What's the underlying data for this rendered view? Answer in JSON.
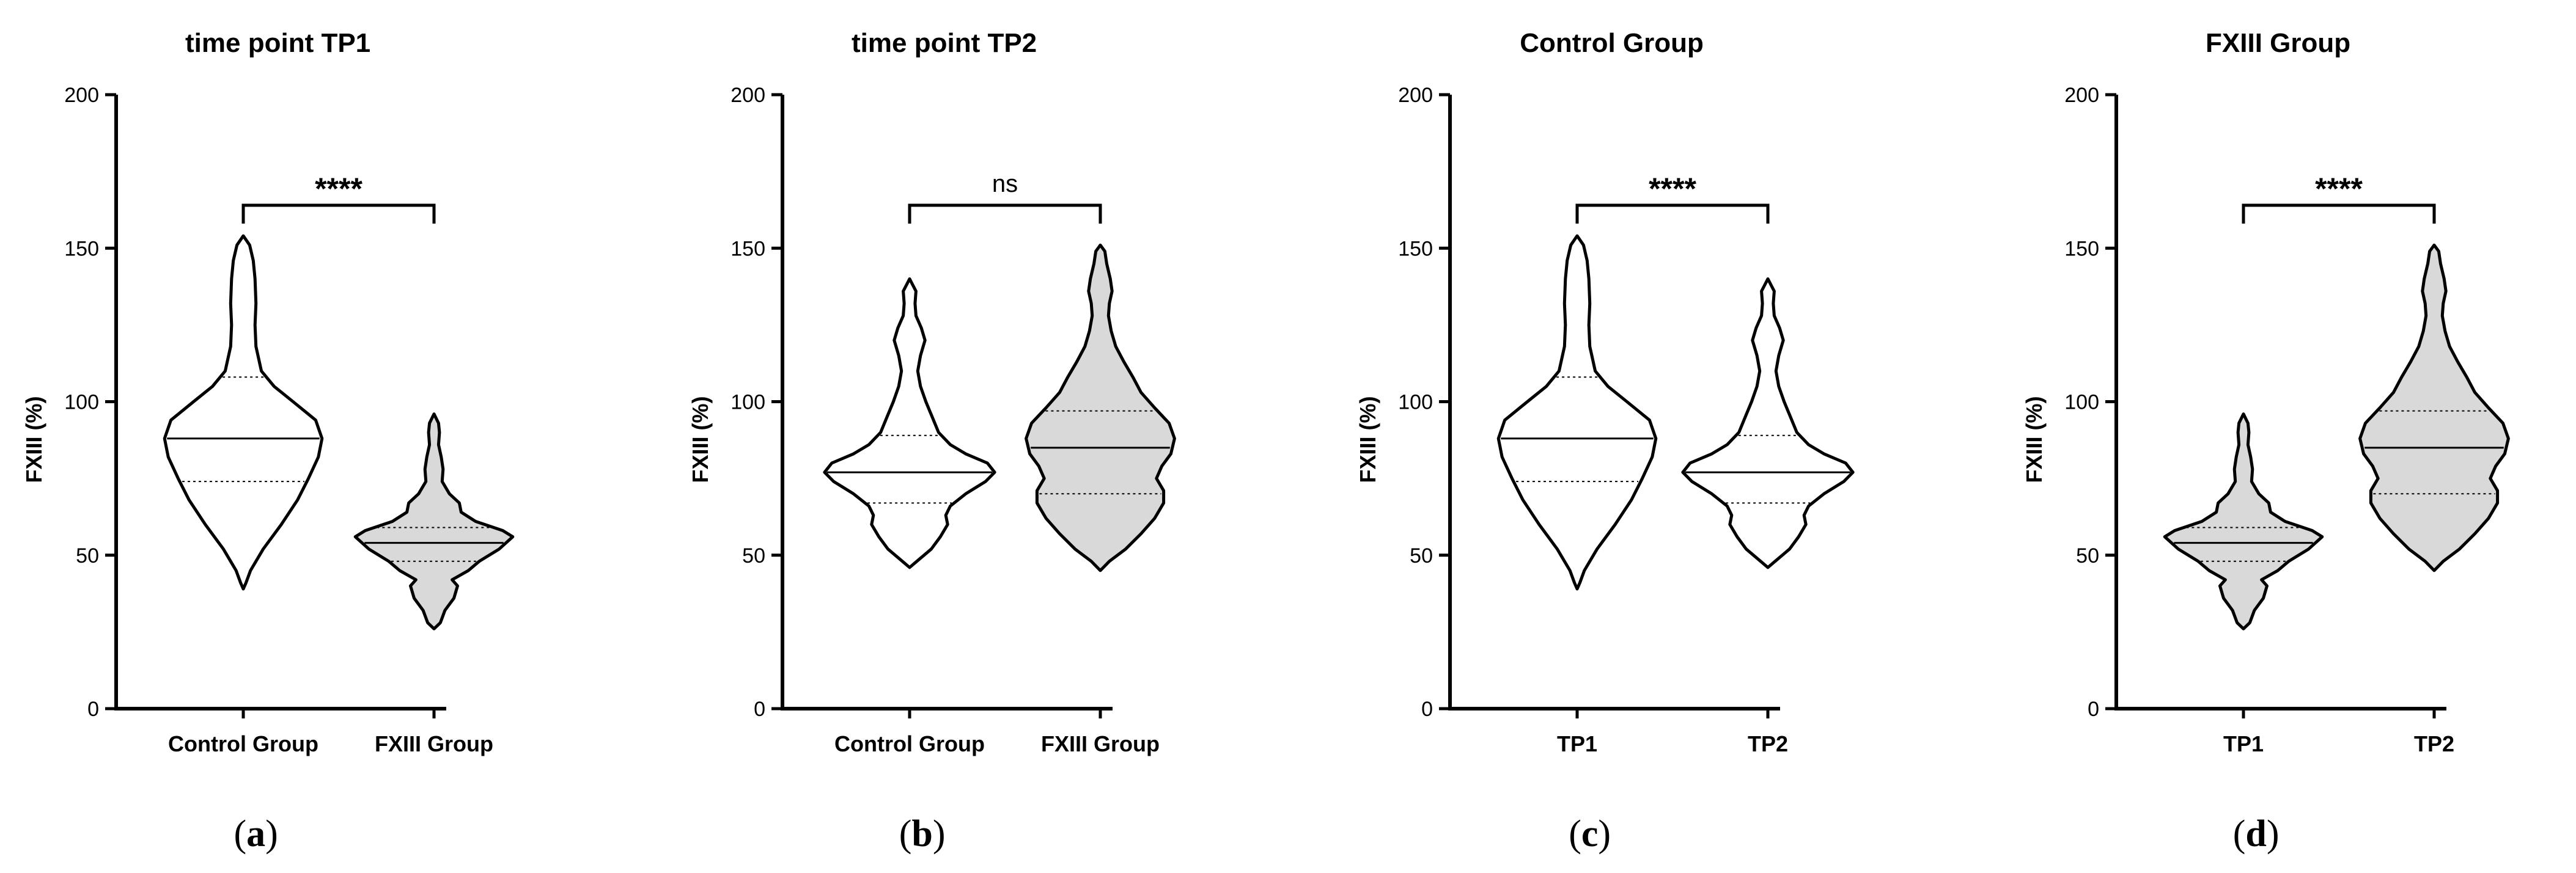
{
  "colors": {
    "outline": "#000000",
    "grey_fill": "#d9d9d9",
    "white_fill": "#ffffff"
  },
  "chart_data": [
    {
      "type": "violin",
      "panel_label": "a",
      "title": "time point TP1",
      "ylabel": "FXIII (%)",
      "xlabel": "",
      "ylim": [
        0,
        200
      ],
      "yticks": [
        0,
        50,
        100,
        150,
        200
      ],
      "categories": [
        "Control Group",
        "FXIII Group"
      ],
      "significance": "****",
      "series": [
        {
          "category": "Control Group",
          "fill": "white",
          "min": 39,
          "max": 154,
          "q1": 74,
          "median": 88,
          "q3": 108,
          "profile": [
            [
              39,
              0
            ],
            [
              41,
              0.03
            ],
            [
              45,
              0.08
            ],
            [
              52,
              0.22
            ],
            [
              60,
              0.42
            ],
            [
              68,
              0.6
            ],
            [
              75,
              0.72
            ],
            [
              82,
              0.83
            ],
            [
              88,
              0.87
            ],
            [
              94,
              0.8
            ],
            [
              100,
              0.55
            ],
            [
              105,
              0.34
            ],
            [
              110,
              0.2
            ],
            [
              118,
              0.14
            ],
            [
              125,
              0.13
            ],
            [
              132,
              0.14
            ],
            [
              140,
              0.13
            ],
            [
              146,
              0.11
            ],
            [
              151,
              0.07
            ],
            [
              154,
              0
            ]
          ]
        },
        {
          "category": "FXIII Group",
          "fill": "grey",
          "min": 26,
          "max": 96,
          "q1": 48,
          "median": 54,
          "q3": 59,
          "profile": [
            [
              26,
              0
            ],
            [
              28,
              0.07
            ],
            [
              32,
              0.12
            ],
            [
              36,
              0.22
            ],
            [
              40,
              0.26
            ],
            [
              42,
              0.2
            ],
            [
              45,
              0.38
            ],
            [
              48,
              0.5
            ],
            [
              52,
              0.72
            ],
            [
              56,
              0.87
            ],
            [
              58,
              0.76
            ],
            [
              61,
              0.46
            ],
            [
              64,
              0.3
            ],
            [
              67,
              0.28
            ],
            [
              70,
              0.17
            ],
            [
              74,
              0.09
            ],
            [
              78,
              0.1
            ],
            [
              82,
              0.08
            ],
            [
              86,
              0.05
            ],
            [
              90,
              0.06
            ],
            [
              93,
              0.05
            ],
            [
              96,
              0
            ]
          ]
        }
      ]
    },
    {
      "type": "violin",
      "panel_label": "b",
      "title": "time point TP2",
      "ylabel": "FXIII (%)",
      "xlabel": "",
      "ylim": [
        0,
        200
      ],
      "yticks": [
        0,
        50,
        100,
        150,
        200
      ],
      "categories": [
        "Control Group",
        "FXIII Group"
      ],
      "significance": "ns",
      "series": [
        {
          "category": "Control Group",
          "fill": "white",
          "min": 46,
          "max": 140,
          "q1": 67,
          "median": 77,
          "q3": 89,
          "profile": [
            [
              46,
              0
            ],
            [
              48,
              0.08
            ],
            [
              52,
              0.24
            ],
            [
              56,
              0.34
            ],
            [
              60,
              0.42
            ],
            [
              63,
              0.4
            ],
            [
              66,
              0.45
            ],
            [
              70,
              0.62
            ],
            [
              74,
              0.84
            ],
            [
              77,
              0.94
            ],
            [
              80,
              0.86
            ],
            [
              83,
              0.62
            ],
            [
              86,
              0.45
            ],
            [
              90,
              0.32
            ],
            [
              95,
              0.25
            ],
            [
              100,
              0.18
            ],
            [
              105,
              0.12
            ],
            [
              110,
              0.09
            ],
            [
              115,
              0.12
            ],
            [
              120,
              0.17
            ],
            [
              124,
              0.13
            ],
            [
              128,
              0.07
            ],
            [
              132,
              0.06
            ],
            [
              136,
              0.07
            ],
            [
              140,
              0
            ]
          ]
        },
        {
          "category": "FXIII Group",
          "fill": "grey",
          "min": 45,
          "max": 151,
          "q1": 70,
          "median": 85,
          "q3": 97,
          "profile": [
            [
              45,
              0
            ],
            [
              48,
              0.1
            ],
            [
              52,
              0.28
            ],
            [
              57,
              0.45
            ],
            [
              62,
              0.6
            ],
            [
              67,
              0.7
            ],
            [
              71,
              0.7
            ],
            [
              75,
              0.62
            ],
            [
              79,
              0.68
            ],
            [
              83,
              0.78
            ],
            [
              88,
              0.82
            ],
            [
              93,
              0.76
            ],
            [
              98,
              0.6
            ],
            [
              103,
              0.45
            ],
            [
              108,
              0.36
            ],
            [
              113,
              0.26
            ],
            [
              118,
              0.17
            ],
            [
              123,
              0.12
            ],
            [
              128,
              0.09
            ],
            [
              132,
              0.1
            ],
            [
              136,
              0.13
            ],
            [
              140,
              0.11
            ],
            [
              145,
              0.07
            ],
            [
              149,
              0.05
            ],
            [
              151,
              0
            ]
          ]
        }
      ]
    },
    {
      "type": "violin",
      "panel_label": "c",
      "title": "Control Group",
      "ylabel": "FXIII (%)",
      "xlabel": "",
      "ylim": [
        0,
        200
      ],
      "yticks": [
        0,
        50,
        100,
        150,
        200
      ],
      "categories": [
        "TP1",
        "TP2"
      ],
      "significance": "****",
      "series": [
        {
          "category": "TP1",
          "fill": "white",
          "min": 39,
          "max": 154,
          "q1": 74,
          "median": 88,
          "q3": 108,
          "profile": [
            [
              39,
              0
            ],
            [
              41,
              0.03
            ],
            [
              45,
              0.08
            ],
            [
              52,
              0.22
            ],
            [
              60,
              0.42
            ],
            [
              68,
              0.6
            ],
            [
              75,
              0.72
            ],
            [
              82,
              0.83
            ],
            [
              88,
              0.87
            ],
            [
              94,
              0.8
            ],
            [
              100,
              0.55
            ],
            [
              105,
              0.34
            ],
            [
              110,
              0.2
            ],
            [
              118,
              0.14
            ],
            [
              125,
              0.13
            ],
            [
              132,
              0.14
            ],
            [
              140,
              0.13
            ],
            [
              146,
              0.11
            ],
            [
              151,
              0.07
            ],
            [
              154,
              0
            ]
          ]
        },
        {
          "category": "TP2",
          "fill": "white",
          "min": 46,
          "max": 140,
          "q1": 67,
          "median": 77,
          "q3": 89,
          "profile": [
            [
              46,
              0
            ],
            [
              48,
              0.08
            ],
            [
              52,
              0.24
            ],
            [
              56,
              0.34
            ],
            [
              60,
              0.42
            ],
            [
              63,
              0.4
            ],
            [
              66,
              0.45
            ],
            [
              70,
              0.62
            ],
            [
              74,
              0.84
            ],
            [
              77,
              0.94
            ],
            [
              80,
              0.86
            ],
            [
              83,
              0.62
            ],
            [
              86,
              0.45
            ],
            [
              90,
              0.32
            ],
            [
              95,
              0.25
            ],
            [
              100,
              0.18
            ],
            [
              105,
              0.12
            ],
            [
              110,
              0.09
            ],
            [
              115,
              0.12
            ],
            [
              120,
              0.17
            ],
            [
              124,
              0.13
            ],
            [
              128,
              0.07
            ],
            [
              132,
              0.06
            ],
            [
              136,
              0.07
            ],
            [
              140,
              0
            ]
          ]
        }
      ]
    },
    {
      "type": "violin",
      "panel_label": "d",
      "title": "FXIII Group",
      "ylabel": "FXIII (%)",
      "xlabel": "",
      "ylim": [
        0,
        200
      ],
      "yticks": [
        0,
        50,
        100,
        150,
        200
      ],
      "categories": [
        "TP1",
        "TP2"
      ],
      "significance": "****",
      "series": [
        {
          "category": "TP1",
          "fill": "grey",
          "min": 26,
          "max": 96,
          "q1": 48,
          "median": 54,
          "q3": 59,
          "profile": [
            [
              26,
              0
            ],
            [
              28,
              0.07
            ],
            [
              32,
              0.12
            ],
            [
              36,
              0.22
            ],
            [
              40,
              0.26
            ],
            [
              42,
              0.2
            ],
            [
              45,
              0.38
            ],
            [
              48,
              0.5
            ],
            [
              52,
              0.72
            ],
            [
              56,
              0.87
            ],
            [
              58,
              0.76
            ],
            [
              61,
              0.46
            ],
            [
              64,
              0.3
            ],
            [
              67,
              0.28
            ],
            [
              70,
              0.17
            ],
            [
              74,
              0.09
            ],
            [
              78,
              0.1
            ],
            [
              82,
              0.08
            ],
            [
              86,
              0.05
            ],
            [
              90,
              0.06
            ],
            [
              93,
              0.05
            ],
            [
              96,
              0
            ]
          ]
        },
        {
          "category": "TP2",
          "fill": "grey",
          "min": 45,
          "max": 151,
          "q1": 70,
          "median": 85,
          "q3": 97,
          "profile": [
            [
              45,
              0
            ],
            [
              48,
              0.1
            ],
            [
              52,
              0.28
            ],
            [
              57,
              0.45
            ],
            [
              62,
              0.6
            ],
            [
              67,
              0.7
            ],
            [
              71,
              0.7
            ],
            [
              75,
              0.62
            ],
            [
              79,
              0.68
            ],
            [
              83,
              0.78
            ],
            [
              88,
              0.82
            ],
            [
              93,
              0.76
            ],
            [
              98,
              0.6
            ],
            [
              103,
              0.45
            ],
            [
              108,
              0.36
            ],
            [
              113,
              0.26
            ],
            [
              118,
              0.17
            ],
            [
              123,
              0.12
            ],
            [
              128,
              0.09
            ],
            [
              132,
              0.1
            ],
            [
              136,
              0.13
            ],
            [
              140,
              0.11
            ],
            [
              145,
              0.07
            ],
            [
              149,
              0.05
            ],
            [
              151,
              0
            ]
          ]
        }
      ]
    }
  ]
}
